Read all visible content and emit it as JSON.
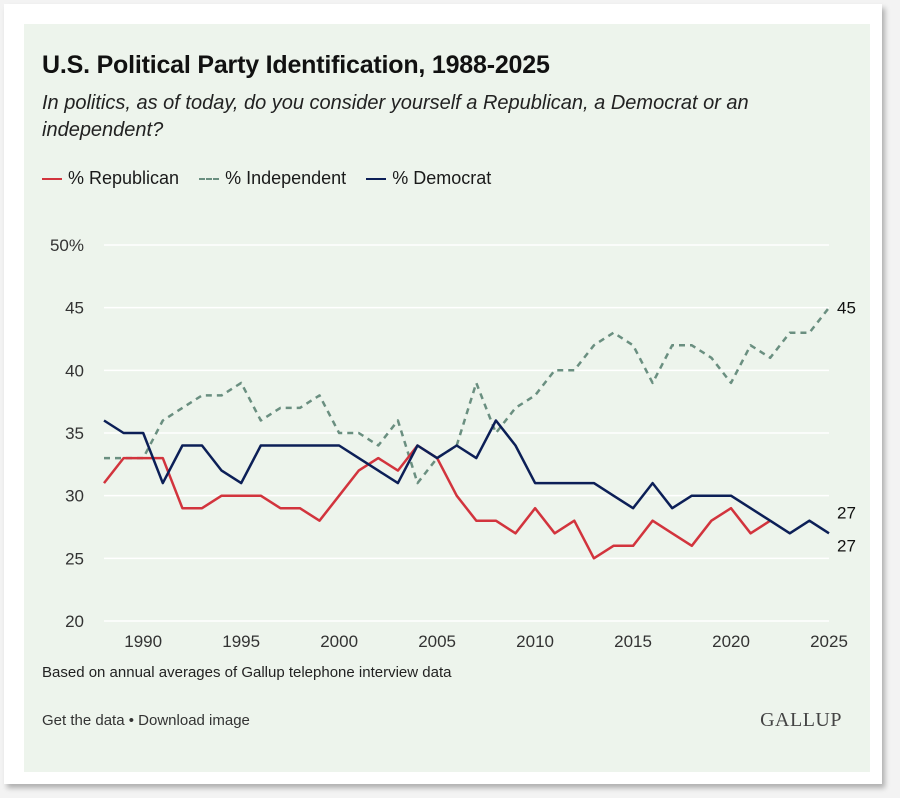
{
  "header": {
    "title": "U.S. Political Party Identification, 1988-2025",
    "subtitle": "In politics, as of today, do you consider yourself a Republican, a Democrat or an independent?"
  },
  "legend": {
    "republican": "% Republican",
    "independent": "% Independent",
    "democrat": "% Democrat"
  },
  "footer": {
    "note": "Based on annual averages of Gallup telephone interview data",
    "get_data": "Get the data",
    "separator": "•",
    "download": "Download image",
    "logo": "GALLUP"
  },
  "colors": {
    "republican": "#d2343d",
    "independent": "#6a8f80",
    "democrat": "#0c1f57",
    "background": "#edf4ec",
    "grid": "#ffffff"
  },
  "chart_data": {
    "type": "line",
    "title": "U.S. Political Party Identification, 1988-2025",
    "xlim": [
      1988,
      2025
    ],
    "ylim": [
      20,
      50
    ],
    "x_ticks": [
      1990,
      1995,
      2000,
      2005,
      2010,
      2015,
      2020,
      2025
    ],
    "x_tick_labels": [
      "1990",
      "1995",
      "2000",
      "2005",
      "2010",
      "2015",
      "2020",
      "2025"
    ],
    "y_ticks": [
      20,
      25,
      30,
      35,
      40,
      45,
      50
    ],
    "y_tick_labels": [
      "20",
      "25",
      "30",
      "35",
      "40",
      "45",
      "50%"
    ],
    "grid": true,
    "legend_position": "top-left",
    "series": [
      {
        "name": "% Republican",
        "color": "#d2343d",
        "dash": "solid",
        "x": [
          1988,
          1989,
          1990,
          1991,
          1992,
          1993,
          1994,
          1995,
          1996,
          1997,
          1998,
          1999,
          2000,
          2001,
          2002,
          2003,
          2004,
          2005,
          2006,
          2007,
          2008,
          2009,
          2010,
          2011,
          2012,
          2013,
          2014,
          2015,
          2016,
          2017,
          2018,
          2019,
          2020,
          2021,
          2022
        ],
        "values": [
          31,
          33,
          33,
          33,
          29,
          29,
          30,
          30,
          30,
          29,
          29,
          28,
          30,
          32,
          33,
          32,
          34,
          33,
          30,
          28,
          28,
          27,
          29,
          27,
          28,
          25,
          26,
          26,
          28,
          27,
          26,
          28,
          29,
          27,
          28
        ]
      },
      {
        "name": "% Independent",
        "color": "#6a8f80",
        "dash": "dashed",
        "x": [
          1988,
          1989,
          1990,
          1991,
          1992,
          1993,
          1994,
          1995,
          1996,
          1997,
          1998,
          1999,
          2000,
          2001,
          2002,
          2003,
          2004,
          2005,
          2006,
          2007,
          2008,
          2009,
          2010,
          2011,
          2012,
          2013,
          2014,
          2015,
          2016,
          2017,
          2018,
          2019,
          2020,
          2021,
          2022,
          2023,
          2024,
          2025
        ],
        "values": [
          33,
          33,
          33,
          36,
          37,
          38,
          38,
          39,
          36,
          37,
          37,
          38,
          35,
          35,
          34,
          36,
          31,
          33,
          34,
          39,
          35,
          37,
          38,
          40,
          40,
          42,
          43,
          42,
          39,
          42,
          42,
          41,
          39,
          42,
          41,
          43,
          43,
          45
        ]
      },
      {
        "name": "% Democrat",
        "color": "#0c1f57",
        "dash": "solid",
        "x": [
          1988,
          1989,
          1990,
          1991,
          1992,
          1993,
          1994,
          1995,
          1996,
          1997,
          1998,
          1999,
          2000,
          2001,
          2002,
          2003,
          2004,
          2005,
          2006,
          2007,
          2008,
          2009,
          2010,
          2011,
          2012,
          2013,
          2014,
          2015,
          2016,
          2017,
          2018,
          2019,
          2020,
          2021,
          2022,
          2023,
          2024,
          2025
        ],
        "values": [
          36,
          35,
          35,
          31,
          34,
          34,
          32,
          31,
          34,
          34,
          34,
          34,
          34,
          33,
          32,
          31,
          34,
          33,
          34,
          33,
          36,
          34,
          31,
          31,
          31,
          31,
          30,
          29,
          31,
          29,
          30,
          30,
          30,
          29,
          28,
          27,
          28,
          27
        ]
      }
    ],
    "end_labels": [
      {
        "series": "% Independent",
        "text": "45"
      },
      {
        "series": "% Republican",
        "text": "27"
      },
      {
        "series": "% Democrat",
        "text": "27"
      }
    ]
  }
}
